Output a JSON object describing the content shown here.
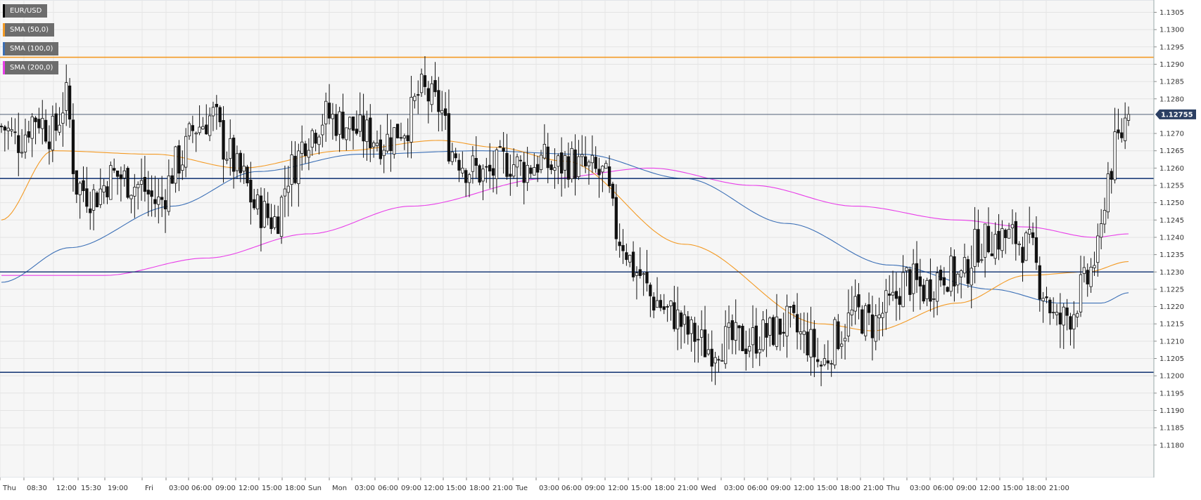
{
  "chart_data": {
    "type": "candlestick",
    "symbol": "EUR/USD",
    "indicators": [
      {
        "name": "SMA (50,0)",
        "color": "#f39a24"
      },
      {
        "name": "SMA (100,0)",
        "color": "#3b6fb6"
      },
      {
        "name": "SMA (200,0)",
        "color": "#e83ee8"
      }
    ],
    "current_price": "1.12755",
    "ylim": [
      1.1175,
      1.131
    ],
    "y_ticks": [
      "1.1305",
      "1.1300",
      "1.1295",
      "1.1290",
      "1.1285",
      "1.1280",
      "1.1270",
      "1.1265",
      "1.1260",
      "1.1255",
      "1.1250",
      "1.1245",
      "1.1240",
      "1.1235",
      "1.1230",
      "1.1225",
      "1.1220",
      "1.1215",
      "1.1210",
      "1.1205",
      "1.1200",
      "1.1195",
      "1.1190",
      "1.1185",
      "1.1180"
    ],
    "x_ticks": [
      "Thu",
      "08:30",
      "12:00",
      "15:30",
      "19:00",
      "Fri",
      "03:00",
      "06:00",
      "09:00",
      "12:00",
      "15:00",
      "18:00",
      "Sun",
      "Mon",
      "03:00",
      "06:00",
      "09:00",
      "12:00",
      "15:00",
      "18:00",
      "21:00",
      "Tue",
      "03:00",
      "06:00",
      "09:00",
      "12:00",
      "15:00",
      "18:00",
      "21:00",
      "Wed",
      "03:00",
      "06:00",
      "09:00",
      "12:00",
      "15:00",
      "18:00",
      "21:00",
      "Thu",
      "03:00",
      "06:00",
      "09:00",
      "12:00",
      "15:00",
      "18:00",
      "21:00"
    ],
    "horizontal_levels": [
      {
        "value": 1.1292,
        "color": "#f39a24"
      },
      {
        "value": 1.1257,
        "color": "#1f3f7a"
      },
      {
        "value": 1.123,
        "color": "#1f3f7a"
      },
      {
        "value": 1.1201,
        "color": "#1f3f7a"
      }
    ],
    "close_anchors": [
      [
        0,
        1.1272
      ],
      [
        5,
        1.1268
      ],
      [
        10,
        1.1275
      ],
      [
        15,
        1.127
      ],
      [
        19,
        1.128
      ],
      [
        22,
        1.1255
      ],
      [
        27,
        1.1252
      ],
      [
        33,
        1.1258
      ],
      [
        40,
        1.1255
      ],
      [
        46,
        1.125
      ],
      [
        52,
        1.1262
      ],
      [
        57,
        1.1272
      ],
      [
        62,
        1.1275
      ],
      [
        66,
        1.1265
      ],
      [
        70,
        1.1258
      ],
      [
        75,
        1.1248
      ],
      [
        80,
        1.1245
      ],
      [
        85,
        1.126
      ],
      [
        90,
        1.127
      ],
      [
        95,
        1.1275
      ],
      [
        100,
        1.1273
      ],
      [
        106,
        1.127
      ],
      [
        112,
        1.1268
      ],
      [
        118,
        1.1272
      ],
      [
        123,
        1.1282
      ],
      [
        128,
        1.1278
      ],
      [
        132,
        1.1265
      ],
      [
        137,
        1.126
      ],
      [
        142,
        1.1258
      ],
      [
        148,
        1.1262
      ],
      [
        153,
        1.126
      ],
      [
        158,
        1.1262
      ],
      [
        162,
        1.126
      ],
      [
        166,
        1.1262
      ],
      [
        170,
        1.126
      ],
      [
        176,
        1.1258
      ],
      [
        181,
        1.124
      ],
      [
        186,
        1.123
      ],
      [
        191,
        1.1222
      ],
      [
        196,
        1.1218
      ],
      [
        202,
        1.1212
      ],
      [
        207,
        1.1208
      ],
      [
        212,
        1.121
      ],
      [
        218,
        1.121
      ],
      [
        224,
        1.1212
      ],
      [
        230,
        1.1215
      ],
      [
        236,
        1.121
      ],
      [
        240,
        1.1203
      ],
      [
        245,
        1.1212
      ],
      [
        250,
        1.1218
      ],
      [
        255,
        1.1215
      ],
      [
        260,
        1.122
      ],
      [
        265,
        1.1228
      ],
      [
        270,
        1.1225
      ],
      [
        276,
        1.123
      ],
      [
        281,
        1.1228
      ],
      [
        286,
        1.1238
      ],
      [
        291,
        1.124
      ],
      [
        296,
        1.124
      ],
      [
        301,
        1.1237
      ],
      [
        305,
        1.1225
      ],
      [
        309,
        1.1215
      ],
      [
        313,
        1.1218
      ],
      [
        317,
        1.1226
      ],
      [
        321,
        1.1235
      ],
      [
        324,
        1.1258
      ],
      [
        327,
        1.1268
      ],
      [
        330,
        1.1276
      ]
    ],
    "sma50_anchors": [
      [
        0,
        1.1245
      ],
      [
        15,
        1.1265
      ],
      [
        45,
        1.1264
      ],
      [
        70,
        1.126
      ],
      [
        100,
        1.1265
      ],
      [
        128,
        1.1268
      ],
      [
        145,
        1.1266
      ],
      [
        165,
        1.1262
      ],
      [
        200,
        1.1238
      ],
      [
        240,
        1.1215
      ],
      [
        255,
        1.1213
      ],
      [
        280,
        1.1221
      ],
      [
        300,
        1.1229
      ],
      [
        318,
        1.123
      ],
      [
        330,
        1.1233
      ]
    ],
    "sma100_anchors": [
      [
        0,
        1.1227
      ],
      [
        20,
        1.1237
      ],
      [
        50,
        1.1249
      ],
      [
        75,
        1.1259
      ],
      [
        105,
        1.1264
      ],
      [
        140,
        1.1265
      ],
      [
        170,
        1.1264
      ],
      [
        200,
        1.1257
      ],
      [
        230,
        1.1244
      ],
      [
        260,
        1.1232
      ],
      [
        290,
        1.1225
      ],
      [
        310,
        1.1221
      ],
      [
        322,
        1.1221
      ],
      [
        330,
        1.1224
      ]
    ],
    "sma200_anchors": [
      [
        0,
        1.1229
      ],
      [
        30,
        1.1229
      ],
      [
        60,
        1.1234
      ],
      [
        90,
        1.1241
      ],
      [
        120,
        1.1249
      ],
      [
        160,
        1.1257
      ],
      [
        190,
        1.126
      ],
      [
        220,
        1.1255
      ],
      [
        250,
        1.1249
      ],
      [
        280,
        1.1245
      ],
      [
        300,
        1.1243
      ],
      [
        320,
        1.124
      ],
      [
        330,
        1.1241
      ]
    ]
  }
}
